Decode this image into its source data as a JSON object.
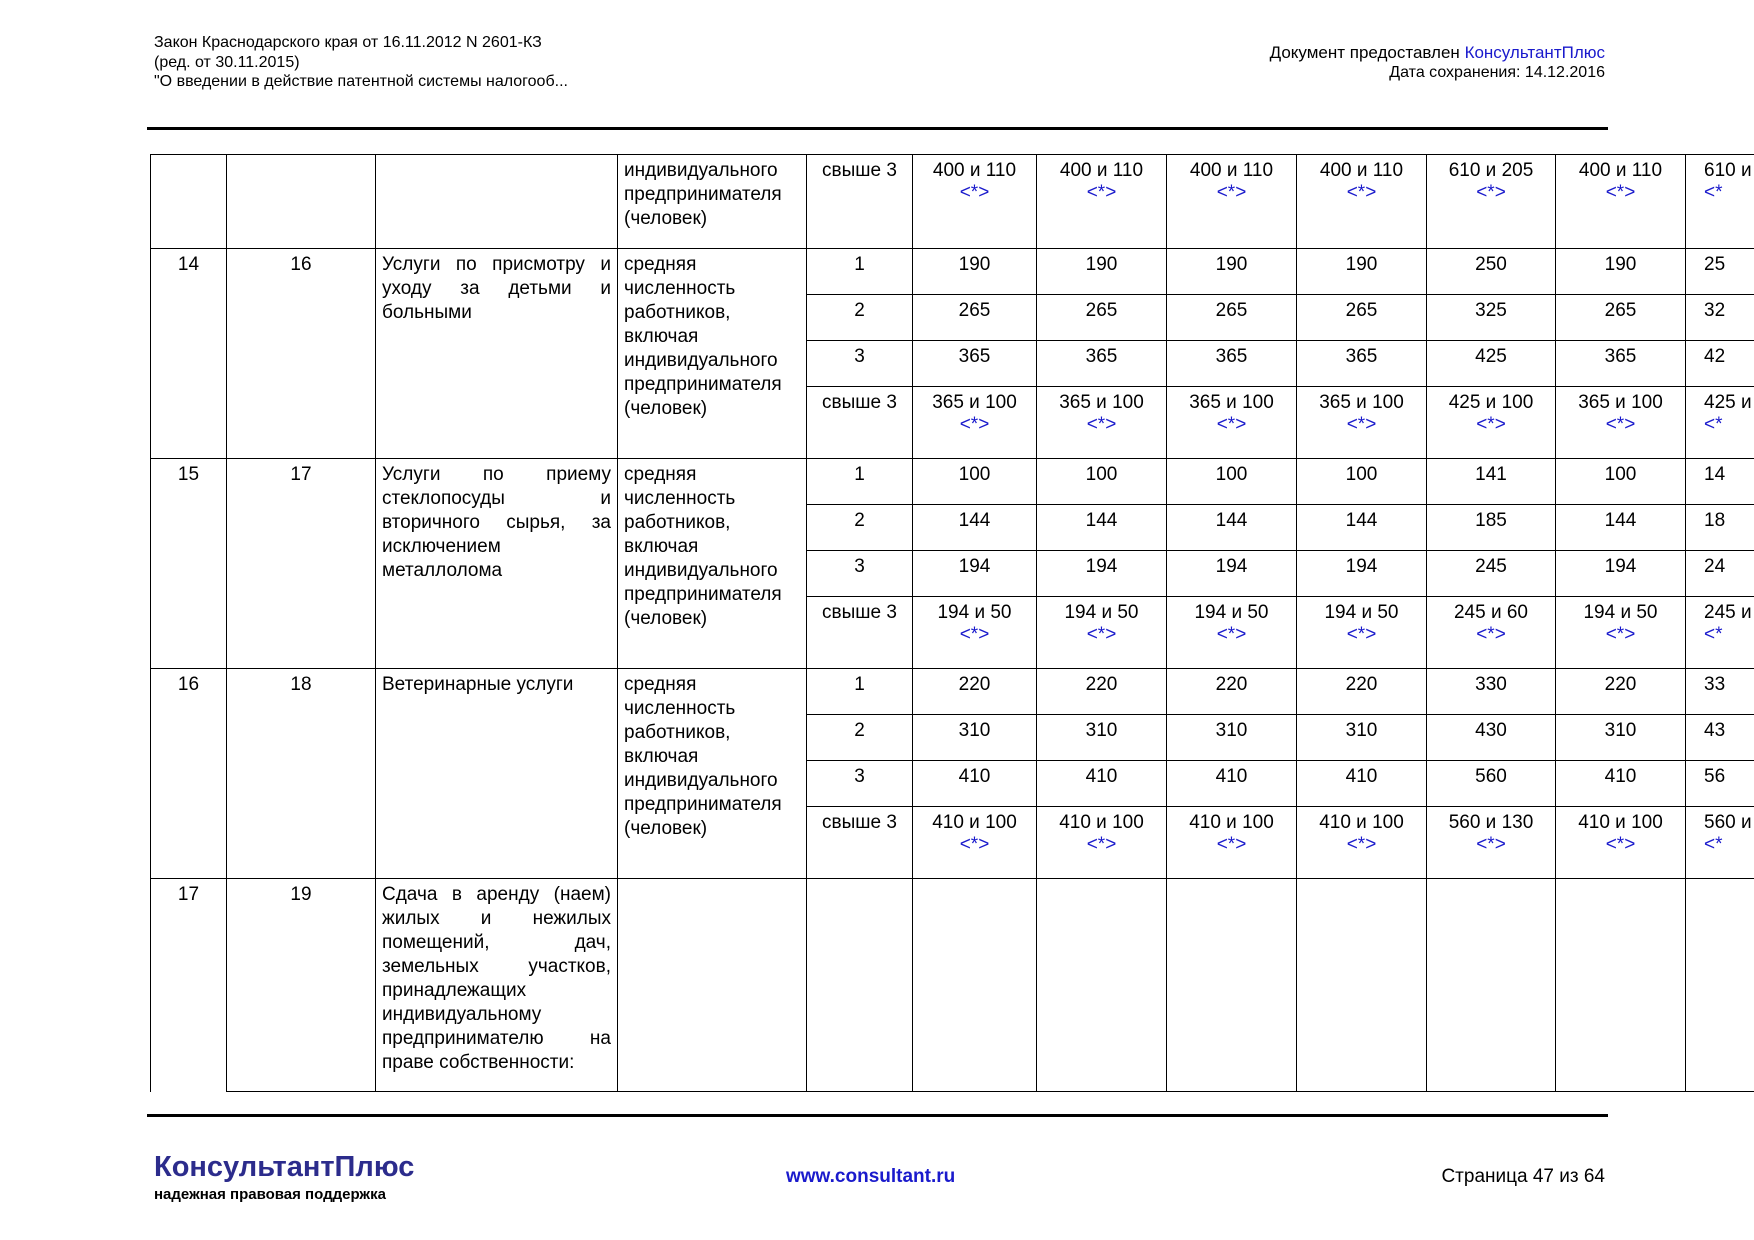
{
  "header": {
    "left": [
      "Закон Краснодарского края от 16.11.2012 N 2601-КЗ",
      "(ред. от 30.11.2015)",
      "\"О введении в действие патентной системы налогооб..."
    ],
    "provider_prefix": "Документ предоставлен",
    "provider_name": "КонсультантПлюс",
    "saved": "Дата сохранения: 14.12.2016"
  },
  "table": {
    "first_row": {
      "indicator": "индивидуального предпринимателя (человек)",
      "count": "свыше 3",
      "values": [
        {
          "text": "400 и 110",
          "note": "<*>"
        },
        {
          "text": "400 и 110",
          "note": "<*>"
        },
        {
          "text": "400 и 110",
          "note": "<*>"
        },
        {
          "text": "400 и 110",
          "note": "<*>"
        },
        {
          "text": "610 и 205",
          "note": "<*>"
        },
        {
          "text": "400 и 110",
          "note": "<*>"
        },
        {
          "text": "610 и",
          "note": "<*"
        }
      ]
    },
    "groups": [
      {
        "num": "14",
        "code": "16",
        "service": "Услуги по присмотру и уходу за детьми и больными",
        "indicator": "средняя численность работников, включая индивидуального предпринимателя (человек)",
        "rows": [
          {
            "count": "1",
            "values": [
              {
                "text": "190"
              },
              {
                "text": "190"
              },
              {
                "text": "190"
              },
              {
                "text": "190"
              },
              {
                "text": "250"
              },
              {
                "text": "190"
              },
              {
                "text": "25"
              }
            ]
          },
          {
            "count": "2",
            "values": [
              {
                "text": "265"
              },
              {
                "text": "265"
              },
              {
                "text": "265"
              },
              {
                "text": "265"
              },
              {
                "text": "325"
              },
              {
                "text": "265"
              },
              {
                "text": "32"
              }
            ]
          },
          {
            "count": "3",
            "values": [
              {
                "text": "365"
              },
              {
                "text": "365"
              },
              {
                "text": "365"
              },
              {
                "text": "365"
              },
              {
                "text": "425"
              },
              {
                "text": "365"
              },
              {
                "text": "42"
              }
            ]
          },
          {
            "count": "свыше 3",
            "values": [
              {
                "text": "365 и 100",
                "note": "<*>"
              },
              {
                "text": "365 и 100",
                "note": "<*>"
              },
              {
                "text": "365 и 100",
                "note": "<*>"
              },
              {
                "text": "365 и 100",
                "note": "<*>"
              },
              {
                "text": "425 и 100",
                "note": "<*>"
              },
              {
                "text": "365 и 100",
                "note": "<*>"
              },
              {
                "text": "425 и",
                "note": "<*"
              }
            ]
          }
        ]
      },
      {
        "num": "15",
        "code": "17",
        "service": "Услуги по приему стеклопосуды и вторичного сырья, за исключением металлолома",
        "indicator": "средняя численность работников, включая индивидуального предпринимателя (человек)",
        "rows": [
          {
            "count": "1",
            "values": [
              {
                "text": "100"
              },
              {
                "text": "100"
              },
              {
                "text": "100"
              },
              {
                "text": "100"
              },
              {
                "text": "141"
              },
              {
                "text": "100"
              },
              {
                "text": "14"
              }
            ]
          },
          {
            "count": "2",
            "values": [
              {
                "text": "144"
              },
              {
                "text": "144"
              },
              {
                "text": "144"
              },
              {
                "text": "144"
              },
              {
                "text": "185"
              },
              {
                "text": "144"
              },
              {
                "text": "18"
              }
            ]
          },
          {
            "count": "3",
            "values": [
              {
                "text": "194"
              },
              {
                "text": "194"
              },
              {
                "text": "194"
              },
              {
                "text": "194"
              },
              {
                "text": "245"
              },
              {
                "text": "194"
              },
              {
                "text": "24"
              }
            ]
          },
          {
            "count": "свыше 3",
            "values": [
              {
                "text": "194 и 50",
                "note": "<*>"
              },
              {
                "text": "194 и 50",
                "note": "<*>"
              },
              {
                "text": "194 и 50",
                "note": "<*>"
              },
              {
                "text": "194 и 50",
                "note": "<*>"
              },
              {
                "text": "245 и 60",
                "note": "<*>"
              },
              {
                "text": "194 и 50",
                "note": "<*>"
              },
              {
                "text": "245 и",
                "note": "<*"
              }
            ]
          }
        ]
      },
      {
        "num": "16",
        "code": "18",
        "service": "Ветеринарные услуги",
        "indicator": "средняя численность работников, включая индивидуального предпринимателя (человек)",
        "rows": [
          {
            "count": "1",
            "values": [
              {
                "text": "220"
              },
              {
                "text": "220"
              },
              {
                "text": "220"
              },
              {
                "text": "220"
              },
              {
                "text": "330"
              },
              {
                "text": "220"
              },
              {
                "text": "33"
              }
            ]
          },
          {
            "count": "2",
            "values": [
              {
                "text": "310"
              },
              {
                "text": "310"
              },
              {
                "text": "310"
              },
              {
                "text": "310"
              },
              {
                "text": "430"
              },
              {
                "text": "310"
              },
              {
                "text": "43"
              }
            ]
          },
          {
            "count": "3",
            "values": [
              {
                "text": "410"
              },
              {
                "text": "410"
              },
              {
                "text": "410"
              },
              {
                "text": "410"
              },
              {
                "text": "560"
              },
              {
                "text": "410"
              },
              {
                "text": "56"
              }
            ]
          },
          {
            "count": "свыше 3",
            "values": [
              {
                "text": "410 и 100",
                "note": "<*>"
              },
              {
                "text": "410 и 100",
                "note": "<*>"
              },
              {
                "text": "410 и 100",
                "note": "<*>"
              },
              {
                "text": "410 и 100",
                "note": "<*>"
              },
              {
                "text": "560 и 130",
                "note": "<*>"
              },
              {
                "text": "410 и 100",
                "note": "<*>"
              },
              {
                "text": "560 и",
                "note": "<*"
              }
            ]
          }
        ]
      }
    ],
    "last_row": {
      "num": "17",
      "code": "19",
      "service": "Сдача в аренду (наем) жилых и нежилых помещений, дач, земельных участков, принадлежащих индивидуальному предпринимателю на праве собственности:"
    }
  },
  "footer": {
    "logo": "КонсультантПлюс",
    "slogan": "надежная правовая поддержка",
    "site": "www.consultant.ru",
    "page": "Страница 47 из 64"
  }
}
